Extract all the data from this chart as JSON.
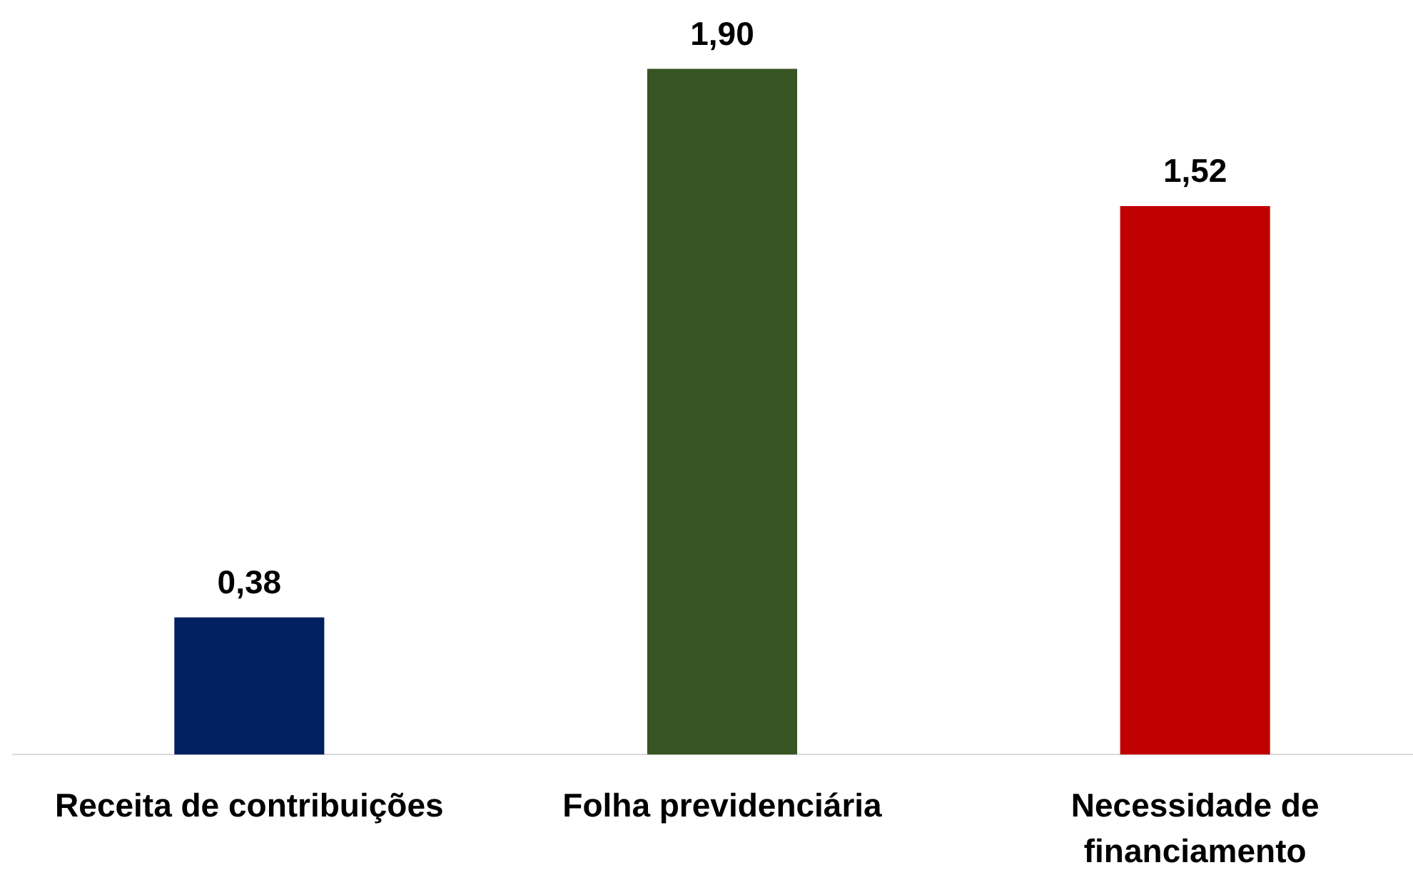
{
  "chart_data": {
    "type": "bar",
    "categories": [
      "Receita de contribuições",
      "Folha previdenciária",
      "Necessidade de financiamento"
    ],
    "values": [
      0.38,
      1.9,
      1.52
    ],
    "colors": [
      "#002060",
      "#375623",
      "#c00000"
    ],
    "value_labels": [
      "0,38",
      "1,90",
      "1,52"
    ]
  }
}
